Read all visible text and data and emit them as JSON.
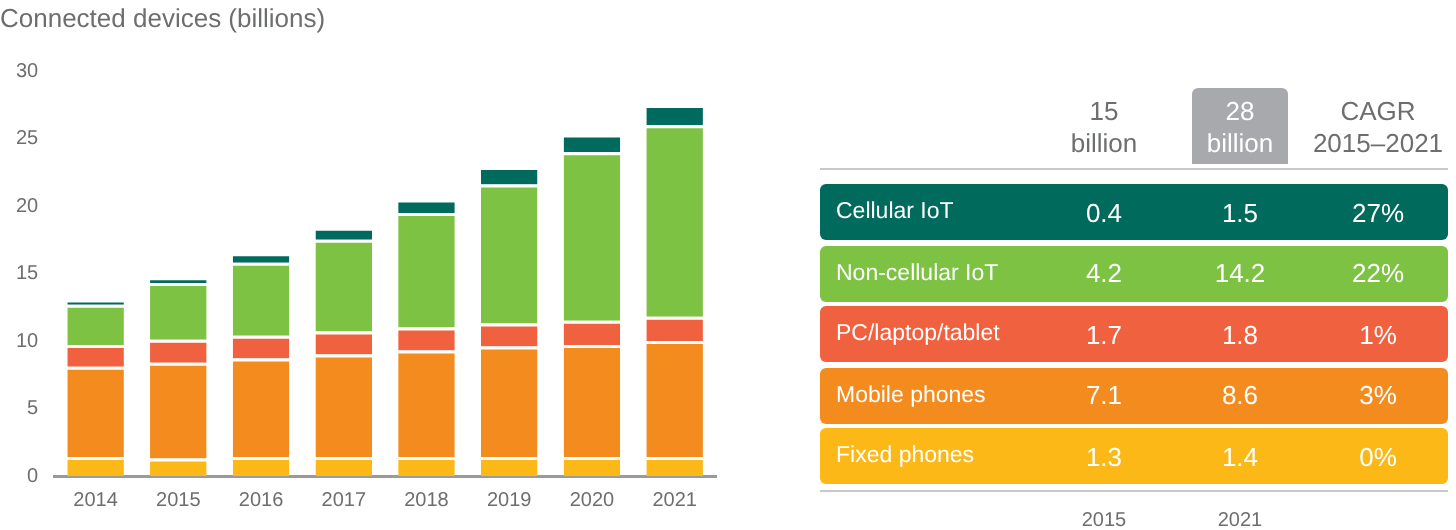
{
  "chart_data": {
    "type": "bar",
    "title": "Connected devices (billions)",
    "stacked": true,
    "categories": [
      "2014",
      "2015",
      "2016",
      "2017",
      "2018",
      "2019",
      "2020",
      "2021"
    ],
    "series": [
      {
        "name": "Fixed phones",
        "color": "#fbb817",
        "values": [
          1.4,
          1.3,
          1.4,
          1.4,
          1.4,
          1.4,
          1.4,
          1.4
        ]
      },
      {
        "name": "Mobile phones",
        "color": "#f38b1f",
        "values": [
          6.7,
          7.1,
          7.3,
          7.6,
          7.9,
          8.2,
          8.3,
          8.6
        ]
      },
      {
        "name": "PC/laptop/tablet",
        "color": "#f0613f",
        "values": [
          1.6,
          1.7,
          1.7,
          1.7,
          1.7,
          1.7,
          1.8,
          1.8
        ]
      },
      {
        "name": "Non-cellular IoT",
        "color": "#7dc242",
        "values": [
          3.0,
          4.2,
          5.4,
          6.8,
          8.5,
          10.3,
          12.5,
          14.2
        ]
      },
      {
        "name": "Cellular IoT",
        "color": "#006b5d",
        "values": [
          0.3,
          0.4,
          0.7,
          0.9,
          1.0,
          1.3,
          1.3,
          1.5
        ]
      }
    ],
    "annotations": [
      "15 billion",
      "28 billion",
      "CAGR 2015–2021",
      "0.4",
      "1.5",
      "27%",
      "4.2",
      "14.2",
      "22%",
      "1.7",
      "1.8",
      "1%",
      "7.1",
      "8.6",
      "3%",
      "1.3",
      "1.4",
      "0%",
      "2015",
      "2021"
    ],
    "ylim": [
      0,
      30
    ],
    "yticks": [
      0,
      5,
      10,
      15,
      20,
      25,
      30
    ],
    "grid": false,
    "legend": "right"
  }
}
